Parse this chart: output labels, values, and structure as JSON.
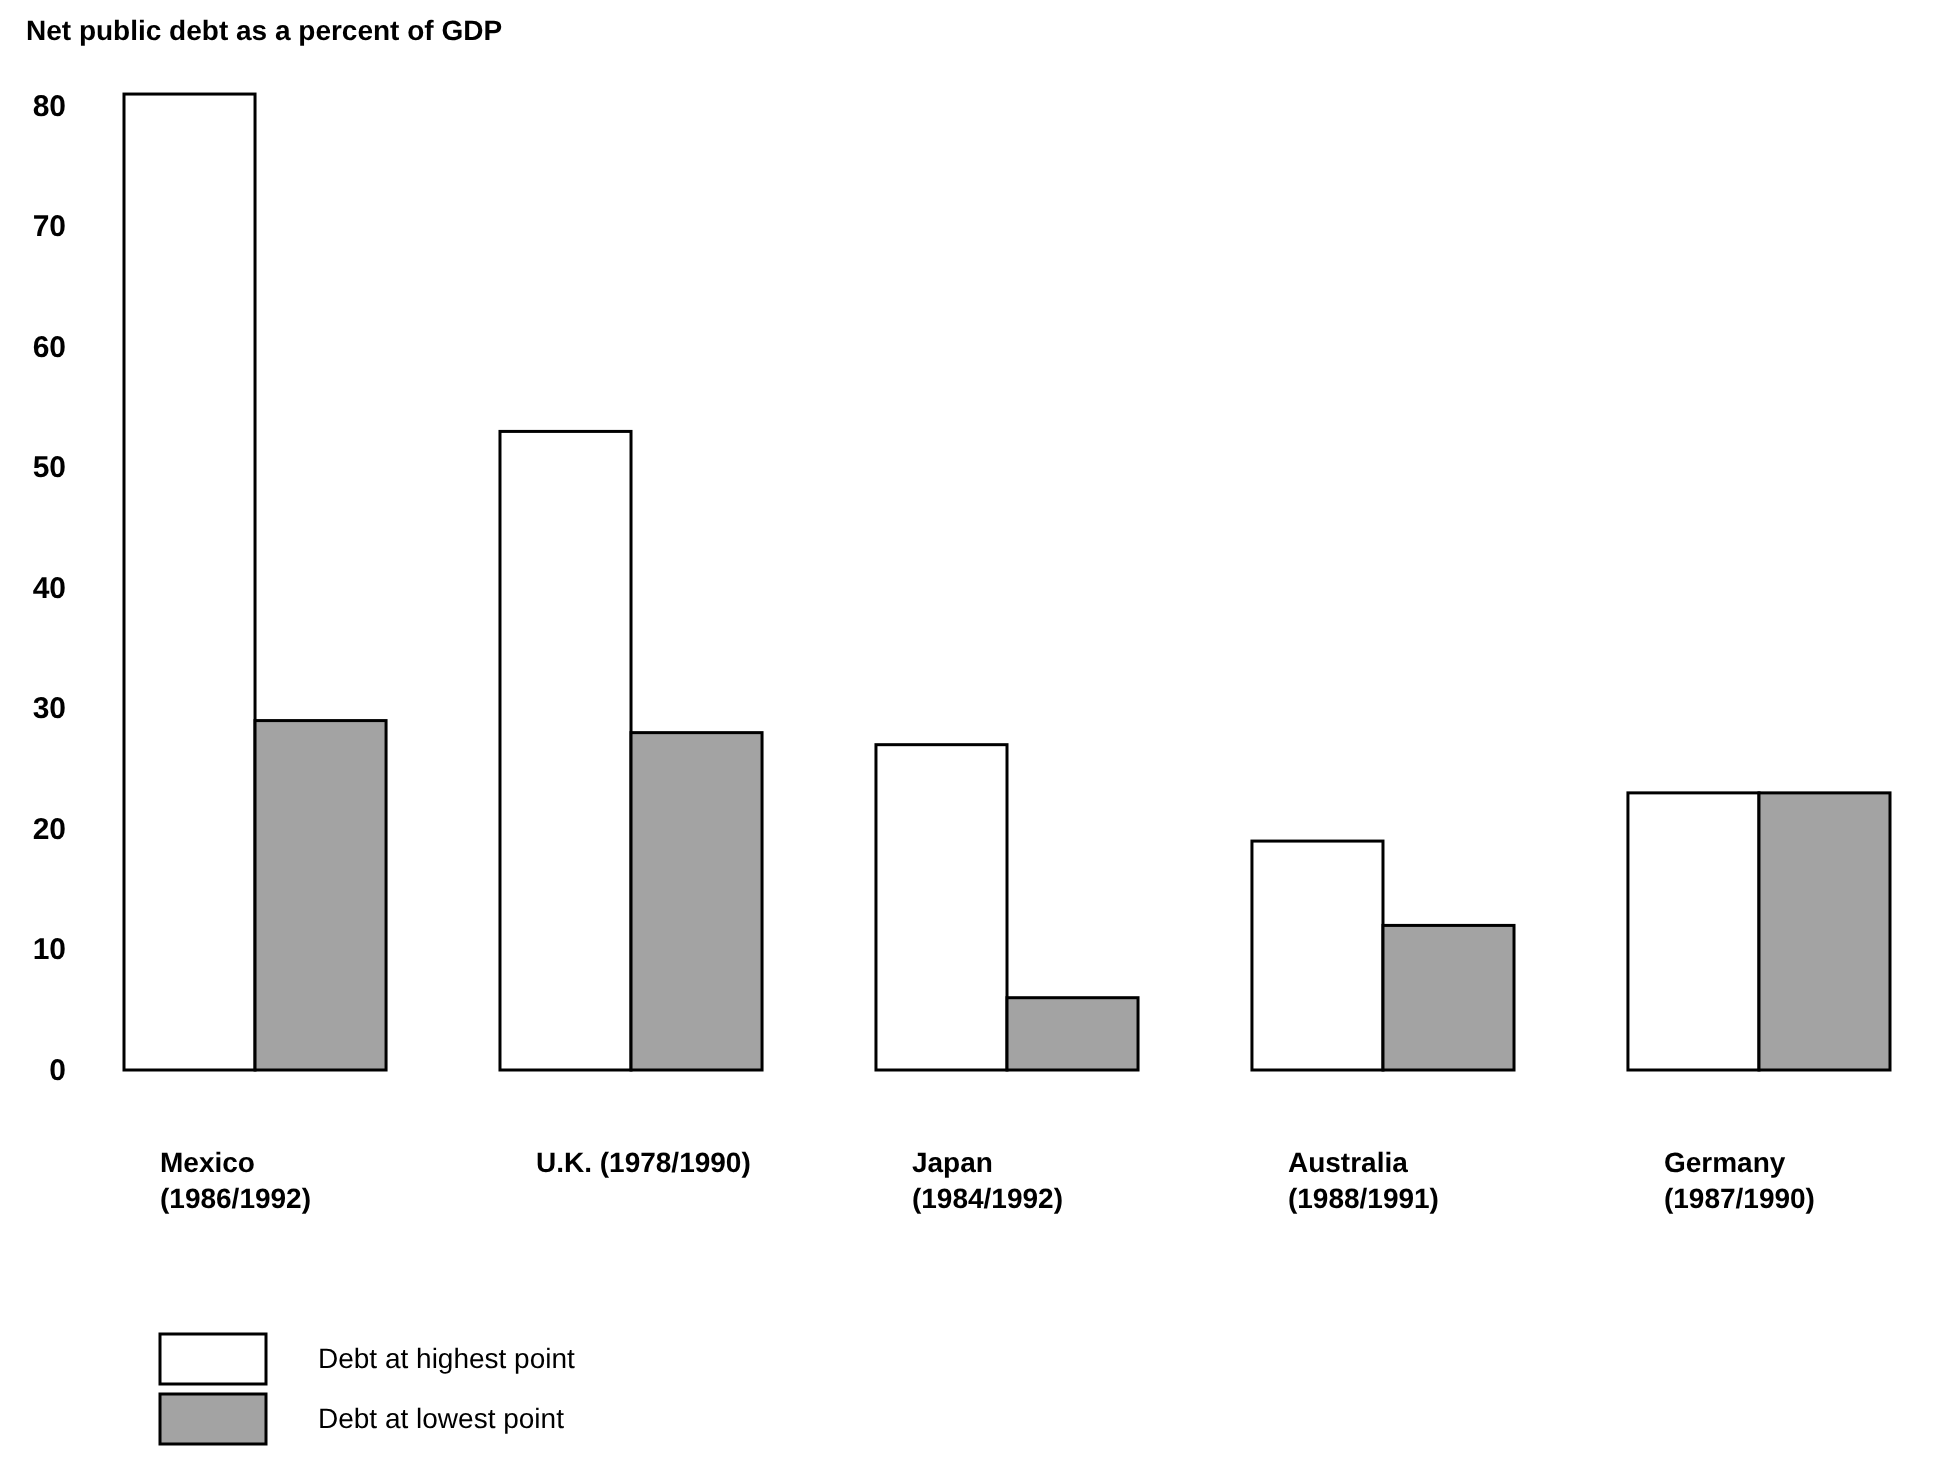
{
  "chart_data": {
    "type": "bar",
    "title": "Net public debt as a percent of GDP",
    "categories": [
      "Mexico\n(1986/1992)",
      "U.K. (1978/1990)",
      "Japan\n(1984/1992)",
      "Australia\n(1988/1991)",
      "Germany\n(1987/1990)"
    ],
    "series": [
      {
        "name": "Debt at highest point",
        "color": "#ffffff",
        "values": [
          81,
          53,
          27,
          19,
          23
        ]
      },
      {
        "name": "Debt at lowest point",
        "color": "#a3a3a3",
        "values": [
          29,
          28,
          6,
          12,
          23
        ]
      }
    ],
    "ylim": [
      0,
      82
    ],
    "yticks": [
      0,
      10,
      20,
      30,
      40,
      50,
      60,
      70,
      80
    ],
    "legend": "bottom left"
  }
}
